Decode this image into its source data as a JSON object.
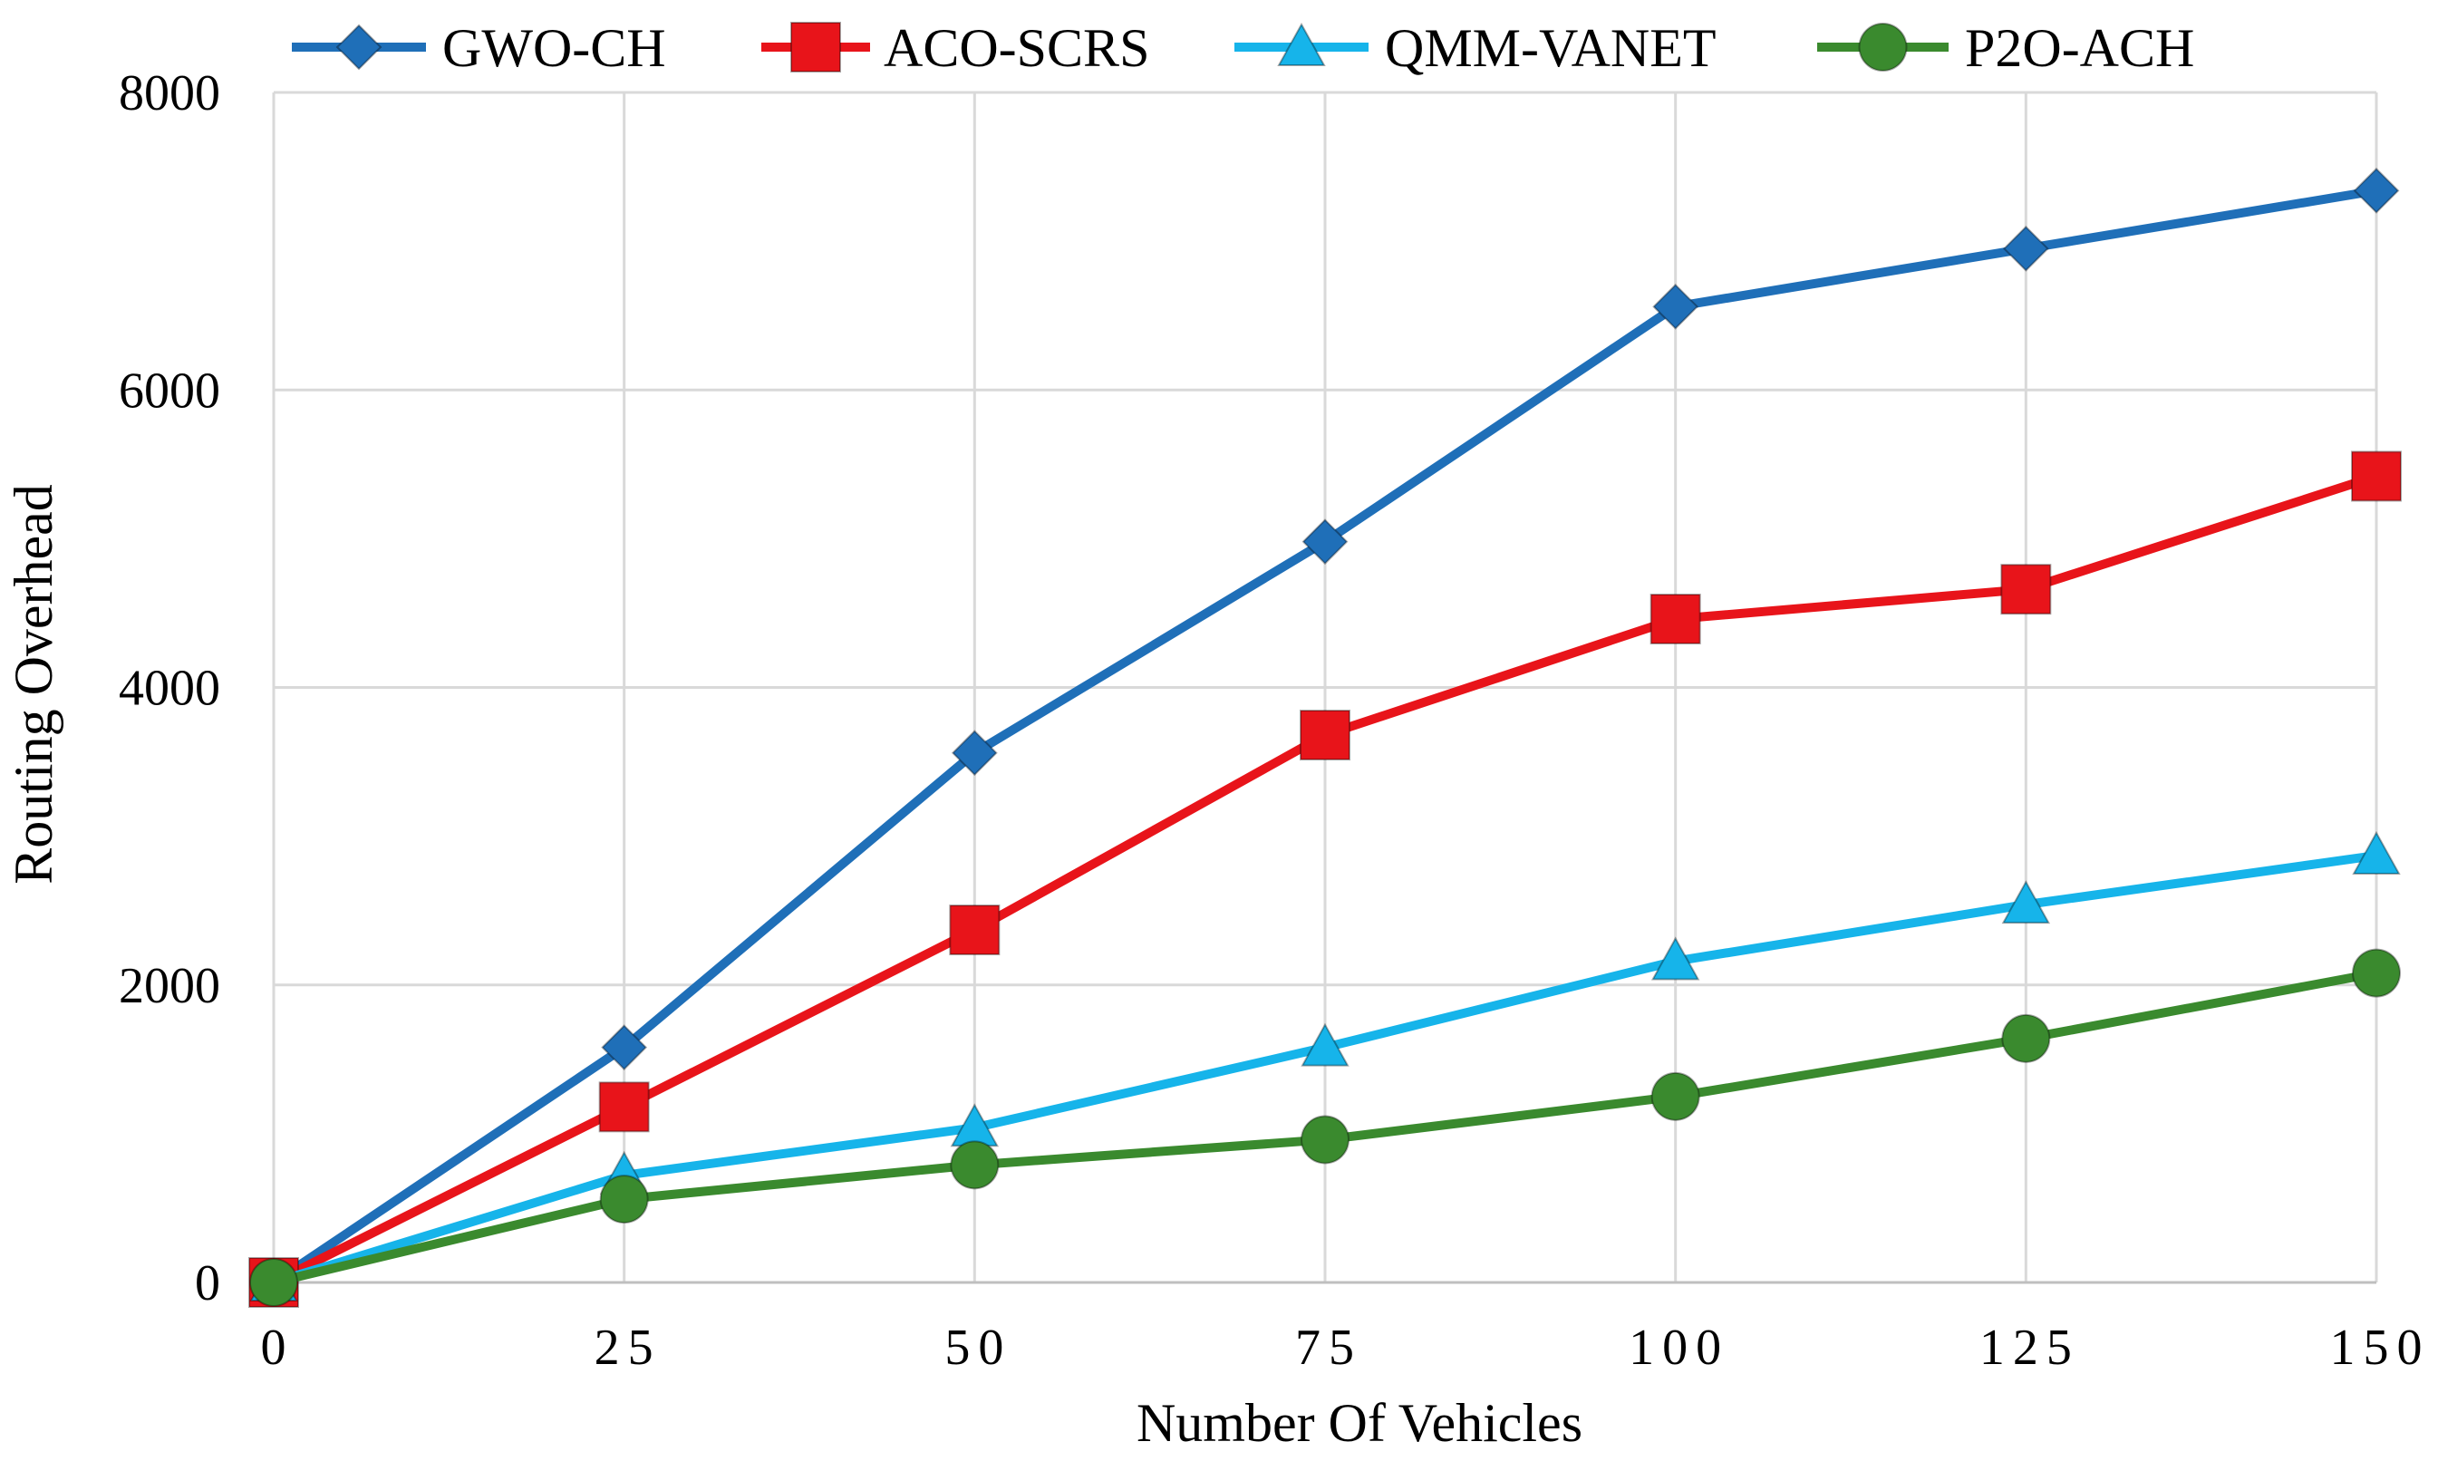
{
  "chart_data": {
    "type": "line",
    "title": "",
    "xlabel": "Number Of Vehicles",
    "ylabel": "Routing Overhead",
    "x": [
      0,
      25,
      50,
      75,
      100,
      125,
      150
    ],
    "x_tick_labels": [
      "0",
      "25",
      "50",
      "75",
      "100",
      "125",
      "150"
    ],
    "y_tick_labels": [
      "0",
      "2000",
      "4000",
      "6000",
      "8000"
    ],
    "y_ticks": [
      0,
      2000,
      4000,
      6000,
      8000
    ],
    "xlim": [
      0,
      150
    ],
    "ylim": [
      0,
      8000
    ],
    "grid": true,
    "legend_position": "top",
    "series": [
      {
        "name": "GWO-CH",
        "color": "#1F6FB8",
        "marker": "diamond",
        "values": [
          0,
          1580,
          3560,
          4980,
          6560,
          6950,
          7340
        ]
      },
      {
        "name": "ACO-SCRS",
        "color": "#E8141A",
        "marker": "square",
        "values": [
          0,
          1180,
          2370,
          3680,
          4460,
          4660,
          5420
        ]
      },
      {
        "name": "QMM-VANET",
        "color": "#16B4EA",
        "marker": "triangle",
        "values": [
          0,
          720,
          1040,
          1580,
          2160,
          2540,
          2870
        ]
      },
      {
        "name": "P2O-ACH",
        "color": "#3A8A2E",
        "marker": "circle",
        "values": [
          0,
          560,
          790,
          960,
          1250,
          1640,
          2080
        ]
      }
    ]
  }
}
